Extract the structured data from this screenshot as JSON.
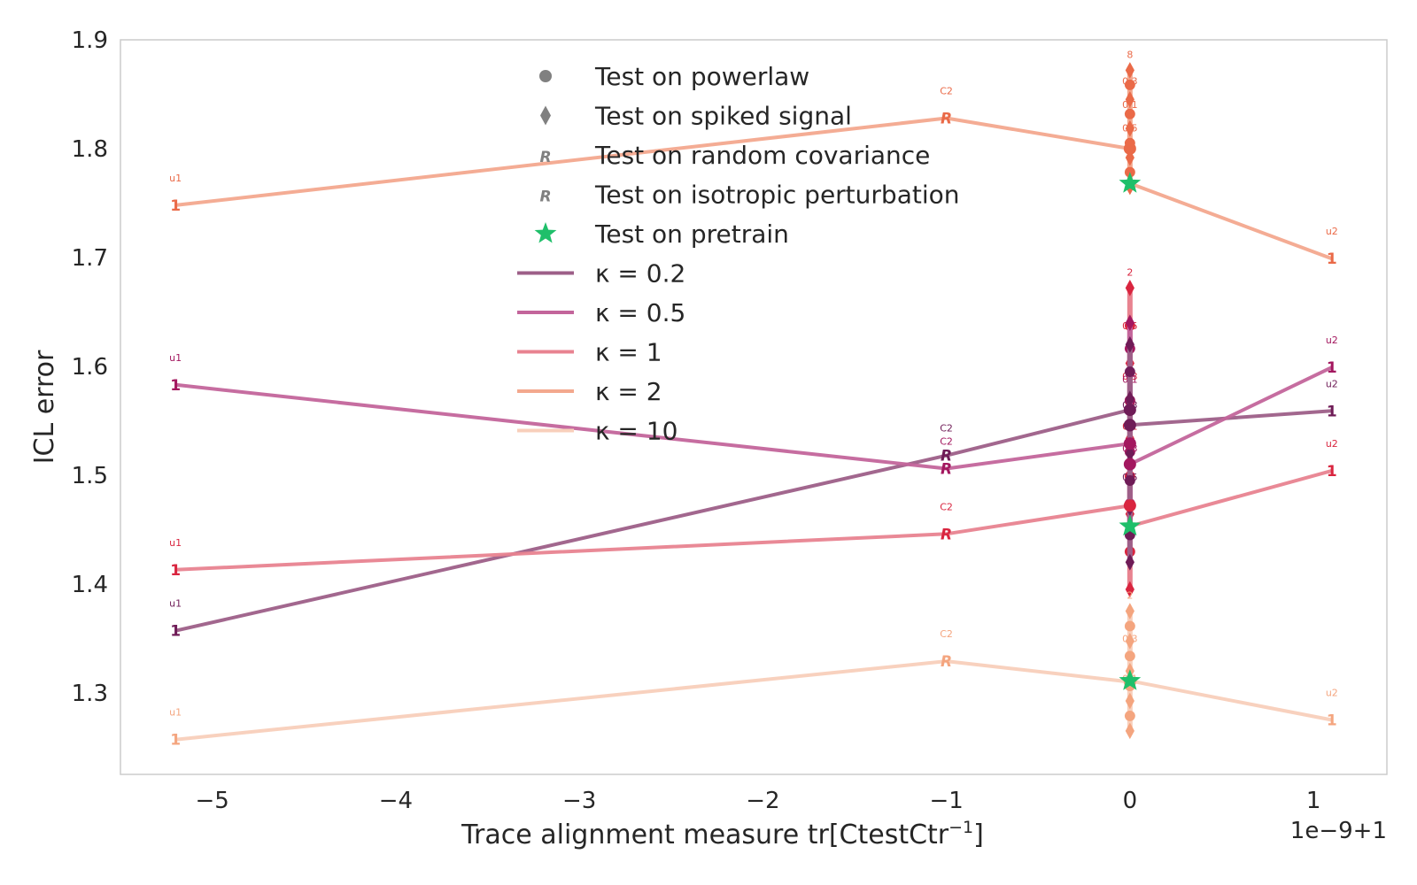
{
  "chart_data": {
    "type": "line",
    "xlabel": "Trace alignment measure tr[CtestCtr",
    "xlabel_sup": "−1",
    "xlabel_close": "]",
    "ylabel": "ICL error",
    "offset_text": "1e−9+1",
    "xlim": [
      -5.5,
      1.4
    ],
    "ylim": [
      1.225,
      1.9
    ],
    "x_ticks": [
      -5,
      -4,
      -3,
      -2,
      -1,
      0,
      1
    ],
    "x_tick_labels": [
      "−5",
      "−4",
      "−3",
      "−2",
      "−1",
      "0",
      "1"
    ],
    "y_ticks": [
      1.3,
      1.4,
      1.5,
      1.6,
      1.7,
      1.8,
      1.9
    ],
    "y_tick_labels": [
      "1.3",
      "1.4",
      "1.5",
      "1.6",
      "1.7",
      "1.8",
      "1.9"
    ],
    "grid": false,
    "legend_position": "top-center",
    "legend": {
      "markers": [
        {
          "label": "Test on powerlaw",
          "shape": "circle",
          "color": "#808080"
        },
        {
          "label": "Test on spiked signal",
          "shape": "diamond",
          "color": "#808080"
        },
        {
          "label": "Test on random covariance",
          "shape": "R",
          "color": "#808080"
        },
        {
          "label": "Test on isotropic perturbation",
          "shape": "R",
          "color": "#808080"
        },
        {
          "label": "Test on pretrain",
          "shape": "star",
          "color": "#1fbf6a"
        }
      ],
      "lines": [
        {
          "label": "κ =  0.2",
          "color": "#9d5f88"
        },
        {
          "label": "κ =  0.5",
          "color": "#c3659b"
        },
        {
          "label": "κ =  1",
          "color": "#e88390"
        },
        {
          "label": "κ =  2",
          "color": "#f3a88e"
        },
        {
          "label": "κ =  10",
          "color": "#f8cfbb"
        }
      ]
    },
    "series": [
      {
        "name": "κ =  0.2",
        "color": "#9d5f88",
        "marker_color": "#6f1c57",
        "points": [
          {
            "x": -5.2,
            "y": 1.357,
            "marker": "1",
            "label": "u1"
          },
          {
            "x": -1.0,
            "y": 1.518,
            "marker": "R",
            "label": "C2"
          },
          {
            "x": 0.0,
            "y": 1.56,
            "marker": "circle",
            "label": ""
          },
          {
            "x": 0.0,
            "y": 1.546,
            "marker": "circle",
            "label": ""
          },
          {
            "x": 1.1,
            "y": 1.559,
            "marker": "1",
            "label": "u2"
          }
        ]
      },
      {
        "name": "κ =  0.5",
        "color": "#c3659b",
        "marker_color": "#a3175f",
        "points": [
          {
            "x": -5.2,
            "y": 1.583,
            "marker": "1",
            "label": "u1"
          },
          {
            "x": -1.0,
            "y": 1.506,
            "marker": "R",
            "label": "C2"
          },
          {
            "x": 0.0,
            "y": 1.529,
            "marker": "circle",
            "label": ""
          },
          {
            "x": 0.0,
            "y": 1.51,
            "marker": "circle",
            "label": ""
          },
          {
            "x": 1.1,
            "y": 1.599,
            "marker": "1",
            "label": "u2"
          }
        ]
      },
      {
        "name": "κ =  1",
        "color": "#e88390",
        "marker_color": "#d9253f",
        "points": [
          {
            "x": -5.2,
            "y": 1.413,
            "marker": "1",
            "label": "u1"
          },
          {
            "x": -1.0,
            "y": 1.446,
            "marker": "R",
            "label": "C2"
          },
          {
            "x": 0.0,
            "y": 1.472,
            "marker": "circle",
            "label": ""
          },
          {
            "x": 0.0,
            "y": 1.453,
            "marker": "star",
            "label": ""
          },
          {
            "x": 1.1,
            "y": 1.504,
            "marker": "1",
            "label": "u2"
          }
        ]
      },
      {
        "name": "κ =  2",
        "color": "#f3a88e",
        "marker_color": "#ea6a48",
        "points": [
          {
            "x": -5.2,
            "y": 1.748,
            "marker": "1",
            "label": "u1"
          },
          {
            "x": -1.0,
            "y": 1.828,
            "marker": "R",
            "label": "C2"
          },
          {
            "x": 0.0,
            "y": 1.8,
            "marker": "circle",
            "label": ""
          },
          {
            "x": 0.0,
            "y": 1.768,
            "marker": "star",
            "label": ""
          },
          {
            "x": 1.1,
            "y": 1.699,
            "marker": "1",
            "label": "u2"
          }
        ]
      },
      {
        "name": "κ =  10",
        "color": "#f8cfbb",
        "marker_color": "#f4a57f",
        "points": [
          {
            "x": -5.2,
            "y": 1.257,
            "marker": "1",
            "label": "u1"
          },
          {
            "x": -1.0,
            "y": 1.329,
            "marker": "R",
            "label": "C2"
          },
          {
            "x": 0.0,
            "y": 1.31,
            "marker": "circle",
            "label": ""
          },
          {
            "x": 0.0,
            "y": 1.311,
            "marker": "star",
            "label": ""
          },
          {
            "x": 1.1,
            "y": 1.275,
            "marker": "1",
            "label": "u2"
          }
        ]
      }
    ],
    "vertical_clusters": [
      {
        "series": "κ =  2",
        "ymin": 1.765,
        "ymax": 1.872,
        "top_label": "8",
        "labels": [
          "0.3",
          "0.1",
          "0.5",
          "5"
        ]
      },
      {
        "series": "κ =  1",
        "ymin": 1.395,
        "ymax": 1.672,
        "top_label": "2",
        "labels": [
          "0.5",
          "0.3",
          "0.1",
          "5",
          "8"
        ]
      },
      {
        "series": "κ =  0.5",
        "ymin": 1.45,
        "ymax": 1.64,
        "top_label": "",
        "labels": [
          "0.1",
          "0.3"
        ]
      },
      {
        "series": "κ =  0.2",
        "ymin": 1.42,
        "ymax": 1.62,
        "top_label": "",
        "labels": [
          "0.3",
          "0.5"
        ]
      },
      {
        "series": "κ =  10",
        "ymin": 1.265,
        "ymax": 1.375,
        "top_label": "2",
        "labels": [
          "0.3",
          "0.1"
        ]
      }
    ]
  }
}
